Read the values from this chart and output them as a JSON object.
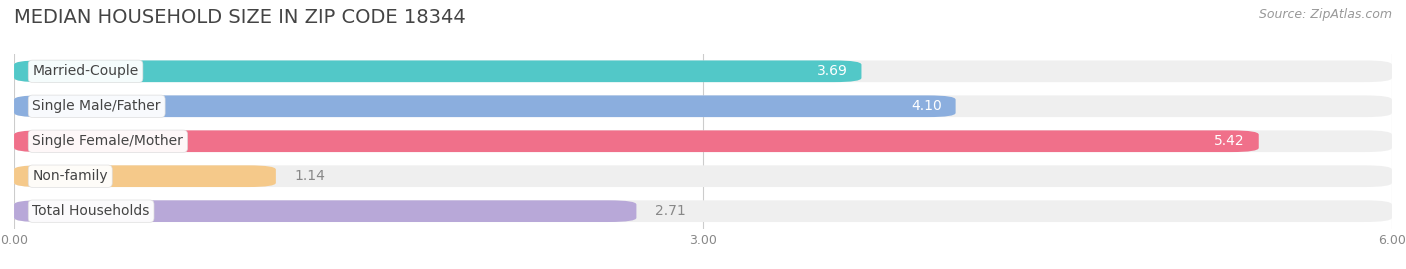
{
  "title": "MEDIAN HOUSEHOLD SIZE IN ZIP CODE 18344",
  "source": "Source: ZipAtlas.com",
  "categories": [
    "Married-Couple",
    "Single Male/Father",
    "Single Female/Mother",
    "Non-family",
    "Total Households"
  ],
  "values": [
    3.69,
    4.1,
    5.42,
    1.14,
    2.71
  ],
  "bar_colors": [
    "#52C8C8",
    "#8BAEDE",
    "#F0708A",
    "#F5C98A",
    "#B8A8D8"
  ],
  "value_label_colors": [
    "white",
    "white",
    "white",
    "#888888",
    "#888888"
  ],
  "xlim": [
    0,
    6.0
  ],
  "xticks": [
    0.0,
    3.0,
    6.0
  ],
  "xtick_labels": [
    "0.00",
    "3.00",
    "6.00"
  ],
  "title_fontsize": 14,
  "source_fontsize": 9,
  "bar_label_fontsize": 10,
  "category_fontsize": 10,
  "background_color": "#ffffff",
  "bar_background_color": "#efefef",
  "bar_height": 0.62,
  "bar_spacing": 1.0
}
